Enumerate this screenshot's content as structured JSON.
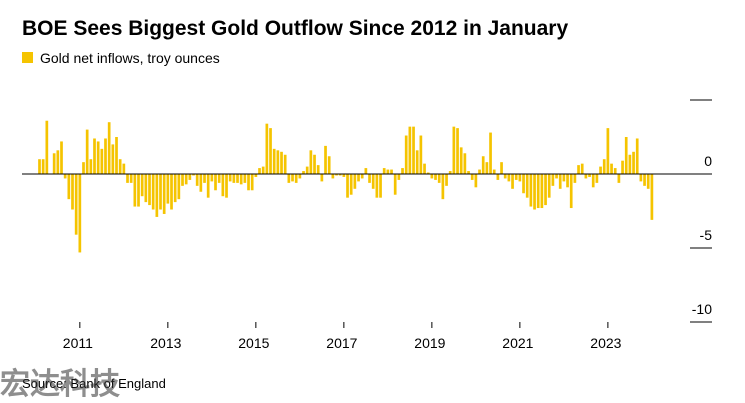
{
  "chart_data": {
    "type": "bar",
    "title": "BOE Sees Biggest Gold Outflow Since 2012 in January",
    "legend": "Gold net inflows, troy ounces",
    "source": "Source: Bank of England",
    "watermark": "宏达科技",
    "color": "#f5c400",
    "categories": [
      null,
      null,
      null,
      null,
      null,
      null,
      null,
      null,
      null,
      null,
      null,
      "2011",
      null,
      null,
      null,
      null,
      null,
      null,
      null,
      null,
      null,
      null,
      null,
      null,
      null,
      null,
      null,
      null,
      null,
      null,
      null,
      null,
      null,
      null,
      null,
      "2013",
      null,
      null,
      null,
      null,
      null,
      null,
      null,
      null,
      null,
      null,
      null,
      null,
      null,
      null,
      null,
      null,
      null,
      null,
      null,
      null,
      null,
      null,
      null,
      "2015",
      null,
      null,
      null,
      null,
      null,
      null,
      null,
      null,
      null,
      null,
      null,
      null,
      null,
      null,
      null,
      null,
      null,
      null,
      null,
      null,
      null,
      null,
      null,
      "2017",
      null,
      null,
      null,
      null,
      null,
      null,
      null,
      null,
      null,
      null,
      null,
      null,
      null,
      null,
      null,
      null,
      null,
      null,
      null,
      null,
      null,
      null,
      null,
      "2019",
      null,
      null,
      null,
      null,
      null,
      null,
      null,
      null,
      null,
      null,
      null,
      null,
      null,
      null,
      null,
      null,
      null,
      null,
      null,
      null,
      null,
      null,
      null,
      "2021",
      null,
      null,
      null,
      null,
      null,
      null,
      null,
      null,
      null,
      null,
      null,
      null,
      null,
      null,
      null,
      null,
      null,
      null,
      null,
      null,
      null,
      null,
      null,
      "2023",
      null,
      null,
      null,
      null,
      null,
      null,
      null,
      null,
      null,
      null,
      null,
      null
    ],
    "values": [
      1.0,
      1.0,
      3.6,
      0,
      1.4,
      1.6,
      2.2,
      -0.3,
      -1.7,
      -2.4,
      -4.1,
      -5.3,
      0.8,
      3.0,
      1.0,
      2.4,
      2.2,
      1.7,
      2.4,
      3.5,
      2.0,
      2.5,
      1.0,
      0.7,
      -0.6,
      -0.6,
      -2.2,
      -2.2,
      -1.5,
      -1.9,
      -2.1,
      -2.4,
      -2.9,
      -2.4,
      -2.7,
      -2.0,
      -2.4,
      -1.9,
      -1.7,
      -0.8,
      -0.7,
      -0.4,
      -0.1,
      -0.8,
      -1.2,
      -0.6,
      -1.6,
      -0.5,
      -1.1,
      -0.6,
      -1.5,
      -1.6,
      -0.5,
      -0.6,
      -0.6,
      -0.7,
      -0.6,
      -1.1,
      -1.1,
      -0.2,
      0.4,
      0.5,
      3.4,
      3.1,
      1.7,
      1.6,
      1.5,
      1.3,
      -0.6,
      -0.5,
      -0.6,
      -0.3,
      0.2,
      0.5,
      1.6,
      1.3,
      0.6,
      -0.5,
      1.9,
      1.2,
      -0.3,
      -0.1,
      -0.1,
      -0.2,
      -1.6,
      -1.4,
      -1.0,
      -0.5,
      -0.3,
      0.4,
      -0.6,
      -1.0,
      -1.6,
      -1.6,
      0.4,
      0.3,
      0.3,
      -1.4,
      -0.4,
      0.4,
      2.6,
      3.2,
      3.2,
      1.6,
      2.6,
      0.7,
      0.1,
      -0.3,
      -0.4,
      -0.6,
      -1.7,
      -0.8,
      0.2,
      3.2,
      3.1,
      1.8,
      1.4,
      0.2,
      -0.4,
      -0.9,
      0.3,
      1.2,
      0.8,
      2.8,
      0.3,
      -0.4,
      0.8,
      -0.3,
      -0.5,
      -1.0,
      -0.4,
      -0.5,
      -1.3,
      -1.6,
      -2.2,
      -2.4,
      -2.3,
      -2.3,
      -2.1,
      -1.6,
      -0.8,
      -0.3,
      -1.0,
      -0.5,
      -0.9,
      -2.3,
      -0.6,
      0.6,
      0.7,
      -0.3,
      -0.2,
      -0.9,
      -0.6,
      0.5,
      1.0,
      3.1,
      0.7,
      0.4,
      -0.6,
      0.9,
      2.5,
      1.3,
      1.5,
      2.4,
      -0.5,
      -0.8,
      -1.0,
      -3.1
    ],
    "ylim": [
      -10,
      5
    ],
    "yticks": [
      -10,
      -5,
      0
    ]
  }
}
